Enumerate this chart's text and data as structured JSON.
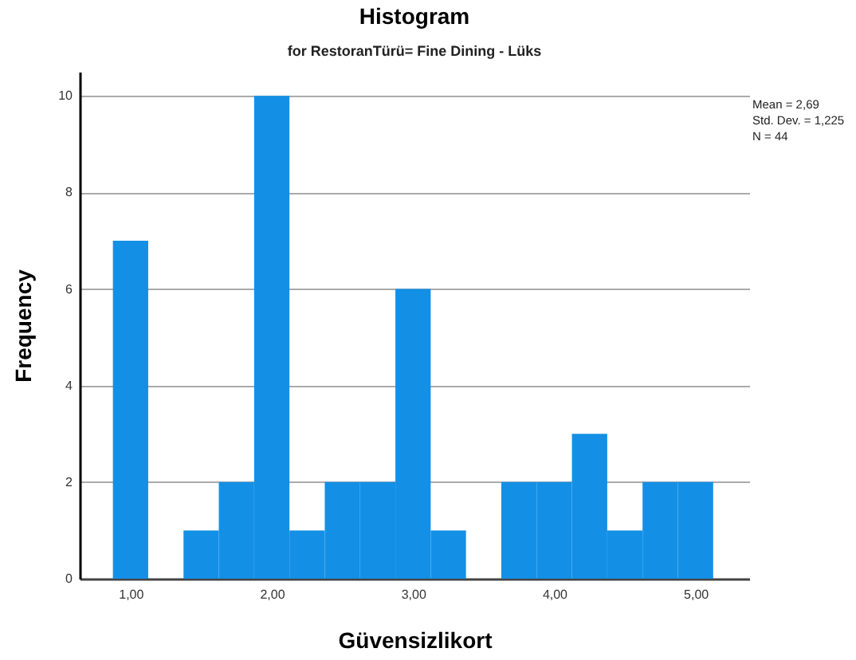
{
  "chart_data": {
    "type": "histogram",
    "title": "Histogram",
    "subtitle": "for RestoranTürü= Fine Dining - Lüks",
    "xlabel": "Güvensizlikort",
    "ylabel": "Frequency",
    "bins": [
      0.875,
      1.125,
      1.375,
      1.625,
      1.875,
      2.125,
      2.375,
      2.625,
      2.875,
      3.125,
      3.375,
      3.625,
      3.875,
      4.125,
      4.375,
      4.625,
      4.875,
      5.125
    ],
    "values": [
      7,
      0,
      1,
      2,
      10,
      1,
      2,
      2,
      6,
      1,
      0,
      2,
      2,
      3,
      1,
      2,
      2
    ],
    "color": "#1390e6",
    "xlim": [
      0.64,
      5.38
    ],
    "ylim": [
      0,
      10.5
    ],
    "xticks": [
      {
        "value": 1,
        "label": "1,00"
      },
      {
        "value": 2,
        "label": "2,00"
      },
      {
        "value": 3,
        "label": "3,00"
      },
      {
        "value": 4,
        "label": "4,00"
      },
      {
        "value": 5,
        "label": "5,00"
      }
    ],
    "yticks": [
      0,
      2,
      4,
      6,
      8,
      10
    ],
    "grid": "y",
    "annotations": [
      "Mean = 2,69",
      "Std. Dev. = 1,225",
      "N = 44"
    ]
  }
}
